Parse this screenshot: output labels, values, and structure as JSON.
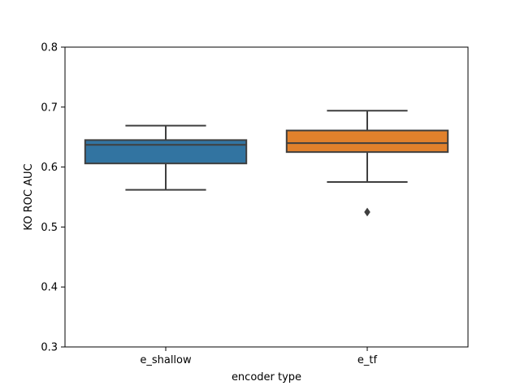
{
  "chart_data": {
    "type": "box",
    "title": "",
    "xlabel": "encoder type",
    "ylabel": "KO ROC AUC",
    "categories": [
      "e_shallow",
      "e_tf"
    ],
    "ylim": [
      0.3,
      0.8
    ],
    "yticks": [
      0.3,
      0.4,
      0.5,
      0.6,
      0.7,
      0.8
    ],
    "ytick_labels": [
      "0.3",
      "0.4",
      "0.5",
      "0.6",
      "0.7",
      "0.8"
    ],
    "grid": false,
    "legend": "none",
    "series": [
      {
        "category": "e_shallow",
        "color": "#3274a1",
        "whisker_low": 0.562,
        "q1": 0.606,
        "median": 0.637,
        "q3": 0.645,
        "whisker_high": 0.669,
        "outliers": []
      },
      {
        "category": "e_tf",
        "color": "#e1812c",
        "whisker_low": 0.575,
        "q1": 0.625,
        "median": 0.64,
        "q3": 0.661,
        "whisker_high": 0.694,
        "outliers": [
          0.525
        ]
      }
    ]
  }
}
